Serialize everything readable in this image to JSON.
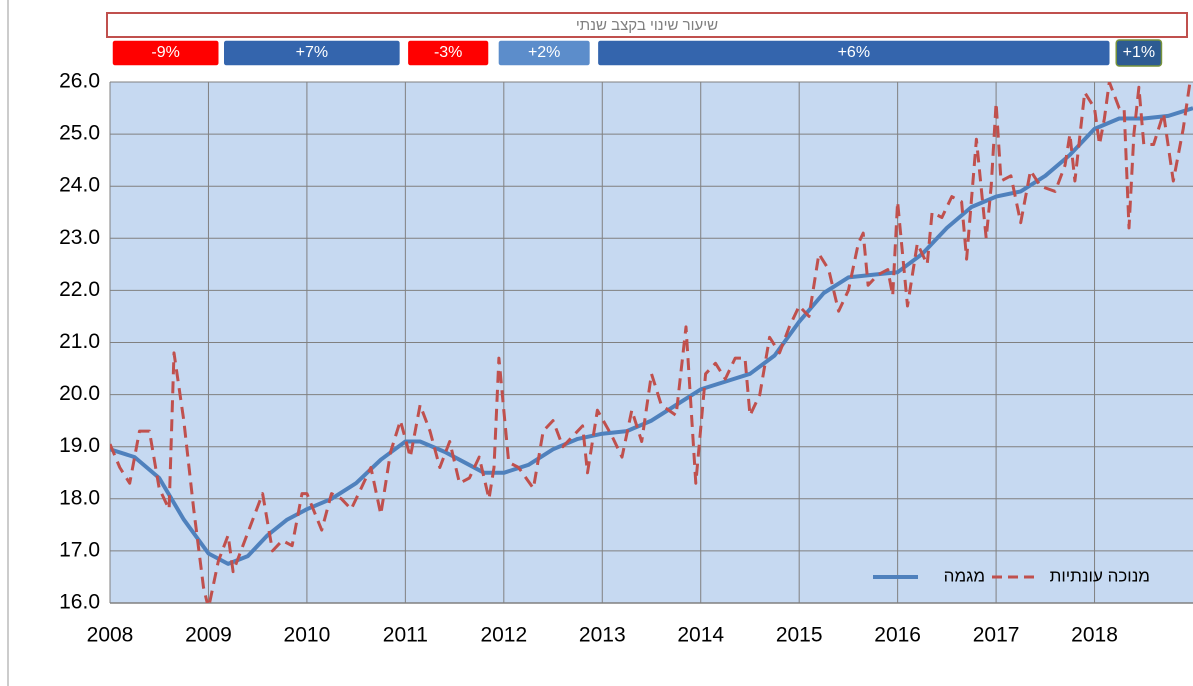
{
  "chart_data": {
    "type": "line",
    "title": "שיעור שינוי בקצב שנתי",
    "periods": [
      {
        "label": "-9%",
        "start": 2008.0,
        "end": 2009.13,
        "color": "#ff0000"
      },
      {
        "label": "+7%",
        "start": 2009.13,
        "end": 2010.97,
        "color": "#3465ad"
      },
      {
        "label": "-3%",
        "start": 2011.0,
        "end": 2011.87,
        "color": "#ff0000"
      },
      {
        "label": "+2%",
        "start": 2011.92,
        "end": 2012.9,
        "color": "#5c8dcb"
      },
      {
        "label": "+6%",
        "start": 2012.93,
        "end": 2018.18,
        "color": "#3465ad"
      },
      {
        "label": "+1%",
        "start": 2018.2,
        "end": 2018.7,
        "color": "#2d5b92"
      }
    ],
    "xlim": [
      2008,
      2019
    ],
    "xticks": [
      2008,
      2009,
      2010,
      2011,
      2012,
      2013,
      2014,
      2015,
      2016,
      2017,
      2018
    ],
    "ylim": [
      16,
      26
    ],
    "yticks": [
      {
        "value": 16,
        "label": "16.0"
      },
      {
        "value": 17,
        "label": "17.0"
      },
      {
        "value": 18,
        "label": "18.0"
      },
      {
        "value": 19,
        "label": "19.0"
      },
      {
        "value": 20,
        "label": "20.0"
      },
      {
        "value": 21,
        "label": "21.0"
      },
      {
        "value": 22,
        "label": "22.0"
      },
      {
        "value": 23,
        "label": "23.0"
      },
      {
        "value": 24,
        "label": "24.0"
      },
      {
        "value": 25,
        "label": "25.0"
      },
      {
        "value": 26,
        "label": "26.0"
      }
    ],
    "grid": true,
    "series": [
      {
        "name": "מגמה",
        "color": "#4f81bd",
        "dashed": false,
        "x": [
          2008.0,
          2008.25,
          2008.5,
          2008.75,
          2009.0,
          2009.2,
          2009.4,
          2009.6,
          2009.8,
          2010.0,
          2010.25,
          2010.5,
          2010.75,
          2011.0,
          2011.15,
          2011.4,
          2011.6,
          2011.8,
          2012.0,
          2012.25,
          2012.5,
          2012.75,
          2013.0,
          2013.25,
          2013.5,
          2013.75,
          2014.0,
          2014.25,
          2014.5,
          2014.75,
          2015.0,
          2015.25,
          2015.5,
          2015.75,
          2016.0,
          2016.25,
          2016.5,
          2016.75,
          2017.0,
          2017.25,
          2017.5,
          2017.75,
          2018.0,
          2018.25,
          2018.5,
          2018.75,
          2019.0
        ],
        "values": [
          18.95,
          18.8,
          18.4,
          17.6,
          16.95,
          16.75,
          16.9,
          17.3,
          17.6,
          17.8,
          18.0,
          18.3,
          18.75,
          19.1,
          19.1,
          18.9,
          18.7,
          18.5,
          18.5,
          18.65,
          18.95,
          19.15,
          19.25,
          19.3,
          19.5,
          19.8,
          20.1,
          20.25,
          20.4,
          20.75,
          21.4,
          21.95,
          22.25,
          22.3,
          22.35,
          22.7,
          23.2,
          23.6,
          23.8,
          23.9,
          24.2,
          24.6,
          25.1,
          25.3,
          25.3,
          25.35,
          25.5
        ]
      },
      {
        "name": "מנוכה עונתיות",
        "color": "#c0504d",
        "dashed": true,
        "x": [
          2008.0,
          2008.1,
          2008.2,
          2008.3,
          2008.4,
          2008.5,
          2008.6,
          2008.65,
          2008.75,
          2008.85,
          2008.95,
          2009.0,
          2009.1,
          2009.2,
          2009.25,
          2009.35,
          2009.55,
          2009.65,
          2009.75,
          2009.85,
          2009.95,
          2010.0,
          2010.15,
          2010.25,
          2010.35,
          2010.45,
          2010.55,
          2010.65,
          2010.75,
          2010.85,
          2010.95,
          2011.05,
          2011.15,
          2011.25,
          2011.35,
          2011.45,
          2011.55,
          2011.65,
          2011.75,
          2011.85,
          2011.9,
          2011.95,
          2012.05,
          2012.15,
          2012.3,
          2012.4,
          2012.5,
          2012.6,
          2012.7,
          2012.8,
          2012.85,
          2012.95,
          2013.1,
          2013.2,
          2013.3,
          2013.4,
          2013.5,
          2013.6,
          2013.75,
          2013.85,
          2013.95,
          2014.05,
          2014.15,
          2014.25,
          2014.35,
          2014.45,
          2014.5,
          2014.6,
          2014.7,
          2014.8,
          2014.9,
          2015.0,
          2015.1,
          2015.2,
          2015.3,
          2015.4,
          2015.5,
          2015.6,
          2015.65,
          2015.7,
          2015.8,
          2015.9,
          2015.95,
          2016.0,
          2016.1,
          2016.2,
          2016.3,
          2016.35,
          2016.45,
          2016.55,
          2016.65,
          2016.7,
          2016.8,
          2016.9,
          2016.95,
          2017.0,
          2017.05,
          2017.15,
          2017.25,
          2017.35,
          2017.45,
          2017.6,
          2017.7,
          2017.75,
          2017.8,
          2017.9,
          2018.0,
          2018.05,
          2018.1,
          2018.15,
          2018.25,
          2018.3,
          2018.35,
          2018.4,
          2018.45,
          2018.5,
          2018.6,
          2018.7,
          2018.8,
          2018.9,
          2018.97
        ],
        "values": [
          19.05,
          18.6,
          18.3,
          19.3,
          19.3,
          18.2,
          17.8,
          20.8,
          19.5,
          17.8,
          16.3,
          15.9,
          16.8,
          17.3,
          16.6,
          17.1,
          18.1,
          17.0,
          17.2,
          17.1,
          18.1,
          18.1,
          17.4,
          18.1,
          18.0,
          17.8,
          18.2,
          18.6,
          17.7,
          18.9,
          19.5,
          18.8,
          19.8,
          19.3,
          18.6,
          19.1,
          18.3,
          18.4,
          18.8,
          18.0,
          18.6,
          20.7,
          18.7,
          18.6,
          18.2,
          19.3,
          19.5,
          19.0,
          19.2,
          19.4,
          18.5,
          19.7,
          19.2,
          18.8,
          19.7,
          19.1,
          20.4,
          19.8,
          19.6,
          21.3,
          18.3,
          20.4,
          20.6,
          20.3,
          20.7,
          20.7,
          19.6,
          20.0,
          21.1,
          20.8,
          21.3,
          21.7,
          21.5,
          22.7,
          22.4,
          21.6,
          22.0,
          22.9,
          23.1,
          22.1,
          22.3,
          22.4,
          21.9,
          23.7,
          21.7,
          22.9,
          22.5,
          23.5,
          23.4,
          23.8,
          23.7,
          22.6,
          24.9,
          23.0,
          24.0,
          25.6,
          24.1,
          24.2,
          23.3,
          24.3,
          24.0,
          23.9,
          24.4,
          25.0,
          24.1,
          25.8,
          25.5,
          24.8,
          25.3,
          26.0,
          25.5,
          25.5,
          23.2,
          25.0,
          25.9,
          24.8,
          24.8,
          25.4,
          24.1,
          25.1,
          26.0
        ]
      }
    ]
  }
}
